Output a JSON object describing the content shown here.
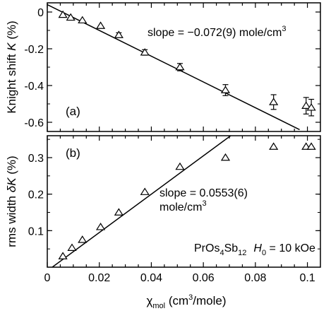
{
  "chart_data": [
    {
      "type": "scatter",
      "panel_label": "(a)",
      "ylabel": "Knight shift K (%)",
      "ylabel_parts": {
        "pre": "Knight shift ",
        "sym": "K",
        "post": " (%)"
      },
      "xlim": [
        0,
        0.105
      ],
      "ylim": [
        -0.65,
        0.05
      ],
      "yticks": [
        0,
        -0.2,
        -0.4,
        -0.6
      ],
      "ytick_labels": [
        "0",
        "-0.2",
        "-0.4",
        "-0.6"
      ],
      "grid": false,
      "annotation": {
        "text": "slope = −0.072(9) mole/cm",
        "sup": "3"
      },
      "fit_line": {
        "x": [
          0,
          0.097
        ],
        "y": [
          0.04,
          -0.64
        ]
      },
      "series": [
        {
          "marker": "open-triangle",
          "x": [
            0.006,
            0.009,
            0.0135,
            0.0205,
            0.0275,
            0.0375,
            0.051,
            0.0685,
            0.087,
            0.0995,
            0.1015
          ],
          "y": [
            -0.015,
            -0.03,
            -0.045,
            -0.075,
            -0.125,
            -0.22,
            -0.3,
            -0.425,
            -0.49,
            -0.51,
            -0.52
          ],
          "yerr": [
            0,
            0,
            0,
            0,
            0.012,
            0.015,
            0.02,
            0.03,
            0.04,
            0.045,
            0.045
          ]
        }
      ]
    },
    {
      "type": "scatter",
      "panel_label": "(b)",
      "ylabel": "rms width δK (%)",
      "ylabel_parts": {
        "pre": "rms width ",
        "sym": "δK",
        "post": " (%)"
      },
      "xlabel": "χmol (cm3/mole)",
      "xlabel_parts": {
        "chi": "χ",
        "sub": "mol",
        "pre": " (cm",
        "sup": "3",
        "post": "/mole)"
      },
      "xlim": [
        0,
        0.105
      ],
      "ylim": [
        0,
        0.36
      ],
      "xticks": [
        0,
        0.02,
        0.04,
        0.06,
        0.08,
        0.1
      ],
      "xtick_labels": [
        "0",
        "0.02",
        "0.04",
        "0.06",
        "0.08",
        "0.1"
      ],
      "yticks": [
        0.1,
        0.2,
        0.3
      ],
      "ytick_labels": [
        "0.1",
        "0.2",
        "0.3"
      ],
      "grid": false,
      "annotation": {
        "line1": "slope = 0.0553(6)",
        "line2": "mole/cm",
        "sup": "3"
      },
      "label": {
        "compound": [
          "PrOs",
          "4",
          "Sb",
          "12"
        ],
        "field_sym": "H",
        "field_sub": "0",
        "field_val": " = 10 kOe"
      },
      "fit_line": {
        "x": [
          0,
          0.0705
        ],
        "y": [
          -0.01,
          0.36
        ]
      },
      "series": [
        {
          "marker": "open-triangle",
          "x": [
            0.006,
            0.0095,
            0.0135,
            0.0205,
            0.0275,
            0.0375,
            0.051,
            0.0685,
            0.087,
            0.0995,
            0.1015
          ],
          "y": [
            0.03,
            0.053,
            0.075,
            0.11,
            0.15,
            0.206,
            0.275,
            0.3,
            0.33,
            0.33,
            0.33
          ]
        }
      ]
    }
  ]
}
